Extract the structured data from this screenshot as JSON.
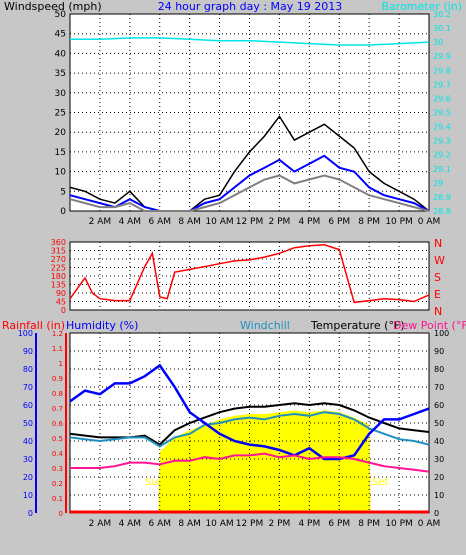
{
  "chart_data": [
    {
      "type": "line",
      "title": "24 hour graph day : May 19 2013",
      "left_label": "Windspeed (mph)",
      "right_label": "Barometer (in)",
      "x_ticks": [
        "2 AM",
        "4 AM",
        "6 AM",
        "8 AM",
        "10 AM",
        "12 PM",
        "2 PM",
        "4 PM",
        "6 PM",
        "8 PM",
        "10 PM",
        "0 AM"
      ],
      "y_left_ticks": [
        "0",
        "5",
        "10",
        "15",
        "20",
        "25",
        "30",
        "35",
        "40",
        "45",
        "50"
      ],
      "y_left_range": [
        0,
        50
      ],
      "y_right_ticks": [
        "28.8",
        "28.9",
        "29",
        "29.1",
        "29.2",
        "29.3",
        "29.4",
        "29.5",
        "29.6",
        "29.7",
        "29.8",
        "29.9",
        "30",
        "30.1",
        "30.2"
      ],
      "y_right_range": [
        28.8,
        30.2
      ],
      "grid": true,
      "series": [
        {
          "role": "gust",
          "color": "#000000",
          "x": [
            0,
            1,
            2,
            3,
            4,
            5,
            6,
            7,
            8,
            9,
            10,
            11,
            12,
            13,
            14,
            15,
            16,
            17,
            18,
            19,
            20,
            21,
            22,
            23,
            24
          ],
          "values": [
            6,
            5,
            3,
            2,
            5,
            1,
            0,
            0,
            0,
            3,
            4,
            10,
            15,
            19,
            24,
            18,
            20,
            22,
            19,
            16,
            10,
            7,
            5,
            3,
            0
          ]
        },
        {
          "role": "average",
          "color": "#0000ff",
          "x": [
            0,
            1,
            2,
            3,
            4,
            5,
            6,
            7,
            8,
            9,
            10,
            11,
            12,
            13,
            14,
            15,
            16,
            17,
            18,
            19,
            20,
            21,
            22,
            23,
            24
          ],
          "values": [
            4,
            3,
            2,
            1,
            3,
            1,
            0,
            0,
            0,
            2,
            3,
            6,
            9,
            11,
            13,
            10,
            12,
            14,
            11,
            10,
            6,
            4,
            3,
            2,
            0
          ]
        },
        {
          "role": "sustained",
          "color": "#808080",
          "x": [
            0,
            1,
            2,
            3,
            4,
            5,
            6,
            7,
            8,
            9,
            10,
            11,
            12,
            13,
            14,
            15,
            16,
            17,
            18,
            19,
            20,
            21,
            22,
            23,
            24
          ],
          "values": [
            3,
            2,
            1,
            1,
            2,
            0,
            0,
            0,
            0,
            1,
            2,
            4,
            6,
            8,
            9,
            7,
            8,
            9,
            8,
            6,
            4,
            3,
            2,
            1,
            0
          ]
        },
        {
          "name": "Barometer",
          "color": "#00e5e5",
          "axis": "right",
          "x": [
            0,
            2,
            4,
            6,
            8,
            10,
            12,
            14,
            16,
            18,
            20,
            22,
            24
          ],
          "values": [
            30.02,
            30.02,
            30.03,
            30.03,
            30.02,
            30.01,
            30.01,
            30.0,
            29.99,
            29.98,
            29.98,
            29.99,
            30.0
          ]
        }
      ]
    },
    {
      "type": "line",
      "left_label": "",
      "y_ticks": [
        "0",
        "45",
        "90",
        "135",
        "180",
        "225",
        "270",
        "315",
        "360"
      ],
      "y_range": [
        0,
        360
      ],
      "compass_labels": [
        "N",
        "W",
        "S",
        "E",
        "N"
      ],
      "x_ticks": [
        "2 AM",
        "4 AM",
        "6 AM",
        "8 AM",
        "10 AM",
        "12 PM",
        "2 PM",
        "4 PM",
        "6 PM",
        "8 PM",
        "10 PM",
        "0 AM"
      ],
      "grid": true,
      "series": [
        {
          "name": "Wind direction",
          "color": "#ff0000",
          "x": [
            0,
            1,
            1.5,
            2,
            3,
            4,
            5,
            5.5,
            6,
            6.5,
            7,
            8,
            9,
            10,
            11,
            12,
            13,
            14,
            15,
            16,
            17,
            18,
            19,
            20,
            21,
            22,
            23,
            24
          ],
          "values": [
            60,
            170,
            90,
            60,
            50,
            50,
            230,
            300,
            70,
            60,
            200,
            215,
            230,
            245,
            260,
            265,
            280,
            300,
            330,
            340,
            345,
            320,
            40,
            50,
            60,
            55,
            45,
            80
          ]
        }
      ]
    },
    {
      "type": "line",
      "labels": {
        "rainfall": "Rainfall (in)",
        "humidity": "Humidity (%)",
        "windchill": "Windchill",
        "temperature": "Temperature (°F)",
        "dewpoint": "Dew Point (°F)"
      },
      "y_rain_ticks": [
        "0",
        "0.1",
        "0.2",
        "0.3",
        "0.4",
        "0.5",
        "0.6",
        "0.7",
        "0.8",
        "0.9",
        "1",
        "1.1",
        "1.2"
      ],
      "y_humidity_ticks": [
        "0",
        "10",
        "20",
        "30",
        "40",
        "50",
        "60",
        "70",
        "80",
        "90",
        "100"
      ],
      "y_temp_ticks": [
        "0",
        "10",
        "20",
        "30",
        "40",
        "50",
        "60",
        "70",
        "80",
        "90",
        "100"
      ],
      "y_temp_range": [
        0,
        100
      ],
      "x_ticks": [
        "2 AM",
        "4 AM",
        "6 AM",
        "8 AM",
        "10 AM",
        "12 PM",
        "2 PM",
        "4 PM",
        "6 PM",
        "8 PM",
        "10 PM",
        "0 AM"
      ],
      "annotations": {
        "sunrise": "Sun",
        "sunset": "Set"
      },
      "sun_hours": [
        5.9,
        20.1
      ],
      "grid": true,
      "series": [
        {
          "name": "Temperature",
          "color": "#000000",
          "x": [
            0,
            1,
            2,
            3,
            4,
            5,
            6,
            7,
            8,
            9,
            10,
            11,
            12,
            13,
            14,
            15,
            16,
            17,
            18,
            19,
            20,
            21,
            22,
            23,
            24
          ],
          "values": [
            44,
            43,
            42,
            42,
            42,
            43,
            38,
            46,
            50,
            53,
            56,
            58,
            59,
            59,
            60,
            61,
            60,
            61,
            60,
            57,
            53,
            50,
            47,
            46,
            45
          ]
        },
        {
          "name": "Windchill",
          "color": "#2090c0",
          "x": [
            0,
            1,
            2,
            3,
            4,
            5,
            6,
            7,
            8,
            9,
            10,
            11,
            12,
            13,
            14,
            15,
            16,
            17,
            18,
            19,
            20,
            21,
            22,
            23,
            24
          ],
          "values": [
            42,
            41,
            40,
            41,
            42,
            42,
            37,
            42,
            44,
            49,
            50,
            52,
            53,
            52,
            54,
            55,
            54,
            56,
            55,
            52,
            47,
            44,
            41,
            40,
            38
          ]
        },
        {
          "name": "Humidity",
          "color": "#0000ff",
          "axis": "humidity",
          "x": [
            0,
            1,
            2,
            3,
            4,
            5,
            6,
            7,
            8,
            9,
            10,
            11,
            12,
            13,
            14,
            15,
            16,
            17,
            18,
            19,
            20,
            21,
            22,
            23,
            24
          ],
          "values": [
            62,
            68,
            66,
            72,
            72,
            76,
            82,
            70,
            56,
            50,
            44,
            40,
            38,
            37,
            35,
            32,
            36,
            30,
            30,
            32,
            44,
            52,
            52,
            55,
            58
          ]
        },
        {
          "name": "Dew Point",
          "color": "#ff1493",
          "x": [
            0,
            1,
            2,
            3,
            4,
            5,
            6,
            7,
            8,
            9,
            10,
            11,
            12,
            13,
            14,
            15,
            16,
            17,
            18,
            19,
            20,
            21,
            22,
            23,
            24
          ],
          "values": [
            25,
            25,
            25,
            26,
            28,
            28,
            27,
            29,
            29,
            31,
            30,
            32,
            32,
            33,
            31,
            32,
            30,
            31,
            31,
            30,
            28,
            26,
            25,
            24,
            23
          ]
        },
        {
          "name": "Rainfall",
          "color": "#ff0000",
          "axis": "rain",
          "x": [
            0,
            24
          ],
          "values": [
            0,
            0
          ]
        }
      ]
    }
  ]
}
